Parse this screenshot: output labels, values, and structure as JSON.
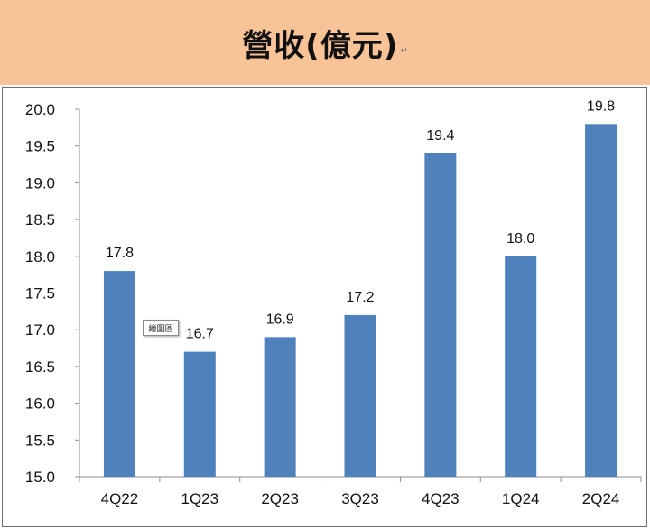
{
  "title": "營收(億元)",
  "title_mark": "↵",
  "tooltip": "繪圖區",
  "colors": {
    "title_band": "#f9c398",
    "bar": "#4f81bd"
  },
  "chart_data": {
    "type": "bar",
    "title": "營收(億元)",
    "categories": [
      "4Q22",
      "1Q23",
      "2Q23",
      "3Q23",
      "4Q23",
      "1Q24",
      "2Q24"
    ],
    "values": [
      17.8,
      16.7,
      16.9,
      17.2,
      19.4,
      18.0,
      19.8
    ],
    "value_labels": [
      "17.8",
      "16.7",
      "16.9",
      "17.2",
      "19.4",
      "18.0",
      "19.8"
    ],
    "ylim": [
      15.0,
      20.0
    ],
    "yticks": [
      "15.0",
      "15.5",
      "16.0",
      "16.5",
      "17.0",
      "17.5",
      "18.0",
      "18.5",
      "19.0",
      "19.5",
      "20.0"
    ],
    "xlabel": "",
    "ylabel": "",
    "grid": false
  }
}
